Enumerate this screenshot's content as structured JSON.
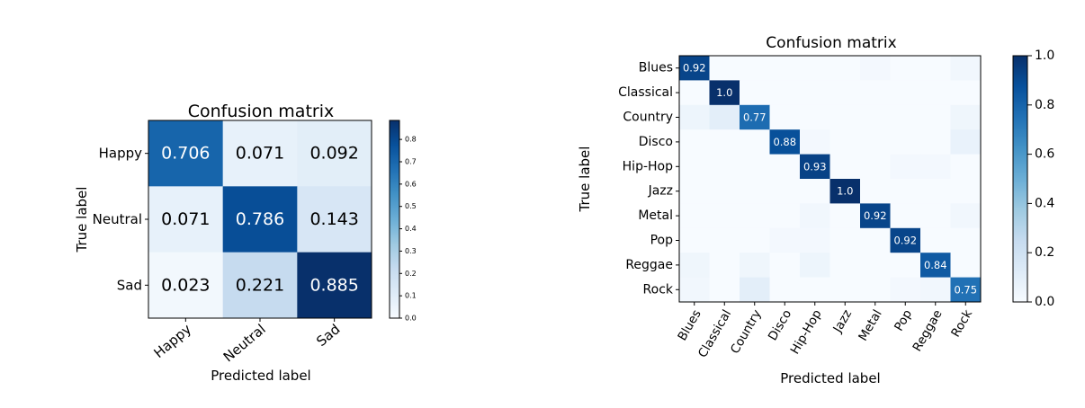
{
  "chart_data": [
    {
      "type": "heatmap",
      "title": "Confusion matrix",
      "xlabel": "Predicted label",
      "ylabel": "True label",
      "row_labels": [
        "Happy",
        "Neutral",
        "Sad"
      ],
      "col_labels": [
        "Happy",
        "Neutral",
        "Sad"
      ],
      "values": [
        [
          0.706,
          0.071,
          0.092
        ],
        [
          0.071,
          0.786,
          0.143
        ],
        [
          0.023,
          0.221,
          0.885
        ]
      ],
      "cell_labels": [
        [
          "0.706",
          "0.071",
          "0.092"
        ],
        [
          "0.071",
          "0.786",
          "0.143"
        ],
        [
          "0.023",
          "0.221",
          "0.885"
        ]
      ],
      "vmin": 0.0,
      "vmax": 0.885,
      "colorbar_ticks": [
        "0.0",
        "0.1",
        "0.2",
        "0.3",
        "0.4",
        "0.5",
        "0.6",
        "0.7",
        "0.8"
      ],
      "colormap": [
        "#f7fbff",
        "#deebf7",
        "#c6dbef",
        "#9ecae1",
        "#6baed6",
        "#4292c6",
        "#2171b5",
        "#08519c",
        "#08306b"
      ],
      "threshold_text_white": 0.5
    },
    {
      "type": "heatmap",
      "title": "Confusion matrix",
      "xlabel": "Predicted label",
      "ylabel": "True label",
      "row_labels": [
        "Blues",
        "Classical",
        "Country",
        "Disco",
        "Hip-Hop",
        "Jazz",
        "Metal",
        "Pop",
        "Reggae",
        "Rock"
      ],
      "col_labels": [
        "Blues",
        "Classical",
        "Country",
        "Disco",
        "Hip-Hop",
        "Jazz",
        "Metal",
        "Pop",
        "Reggae",
        "Rock"
      ],
      "values": [
        [
          0.92,
          0,
          0,
          0,
          0,
          0,
          0.02,
          0,
          0,
          0.03
        ],
        [
          0,
          1.0,
          0,
          0,
          0,
          0,
          0,
          0,
          0,
          0
        ],
        [
          0.05,
          0.1,
          0.77,
          0,
          0,
          0,
          0,
          0,
          0,
          0.04
        ],
        [
          0,
          0,
          0,
          0.88,
          0.02,
          0,
          0,
          0,
          0,
          0.07
        ],
        [
          0,
          0,
          0,
          0,
          0.93,
          0,
          0,
          0.02,
          0.02,
          0
        ],
        [
          0,
          0,
          0,
          0,
          0,
          1.0,
          0,
          0,
          0,
          0
        ],
        [
          0,
          0,
          0,
          0,
          0.03,
          0,
          0.92,
          0,
          0,
          0.03
        ],
        [
          0,
          0,
          0,
          0.02,
          0.02,
          0,
          0,
          0.92,
          0,
          0
        ],
        [
          0.04,
          0,
          0.04,
          0,
          0.05,
          0,
          0,
          0,
          0.84,
          0
        ],
        [
          0.03,
          0,
          0.1,
          0,
          0,
          0,
          0,
          0.02,
          0.03,
          0.75
        ]
      ],
      "cell_labels": [
        [
          "0.92",
          "",
          "",
          "",
          "",
          "",
          "",
          "",
          "",
          ""
        ],
        [
          "",
          "1.0",
          "",
          "",
          "",
          "",
          "",
          "",
          "",
          ""
        ],
        [
          "",
          "",
          "0.77",
          "",
          "",
          "",
          "",
          "",
          "",
          ""
        ],
        [
          "",
          "",
          "",
          "0.88",
          "",
          "",
          "",
          "",
          "",
          ""
        ],
        [
          "",
          "",
          "",
          "",
          "0.93",
          "",
          "",
          "",
          "",
          ""
        ],
        [
          "",
          "",
          "",
          "",
          "",
          "1.0",
          "",
          "",
          "",
          ""
        ],
        [
          "",
          "",
          "",
          "",
          "",
          "",
          "0.92",
          "",
          "",
          ""
        ],
        [
          "",
          "",
          "",
          "",
          "",
          "",
          "",
          "0.92",
          "",
          ""
        ],
        [
          "",
          "",
          "",
          "",
          "",
          "",
          "",
          "",
          "0.84",
          ""
        ],
        [
          "",
          "",
          "",
          "",
          "",
          "",
          "",
          "",
          "",
          "0.75"
        ]
      ],
      "vmin": 0.0,
      "vmax": 1.0,
      "colorbar_ticks": [
        "0.0",
        "0.2",
        "0.4",
        "0.6",
        "0.8",
        "1.0"
      ],
      "colormap": [
        "#f7fbff",
        "#deebf7",
        "#c6dbef",
        "#9ecae1",
        "#6baed6",
        "#4292c6",
        "#2171b5",
        "#08519c",
        "#08306b"
      ],
      "threshold_text_white": 0.5
    }
  ]
}
